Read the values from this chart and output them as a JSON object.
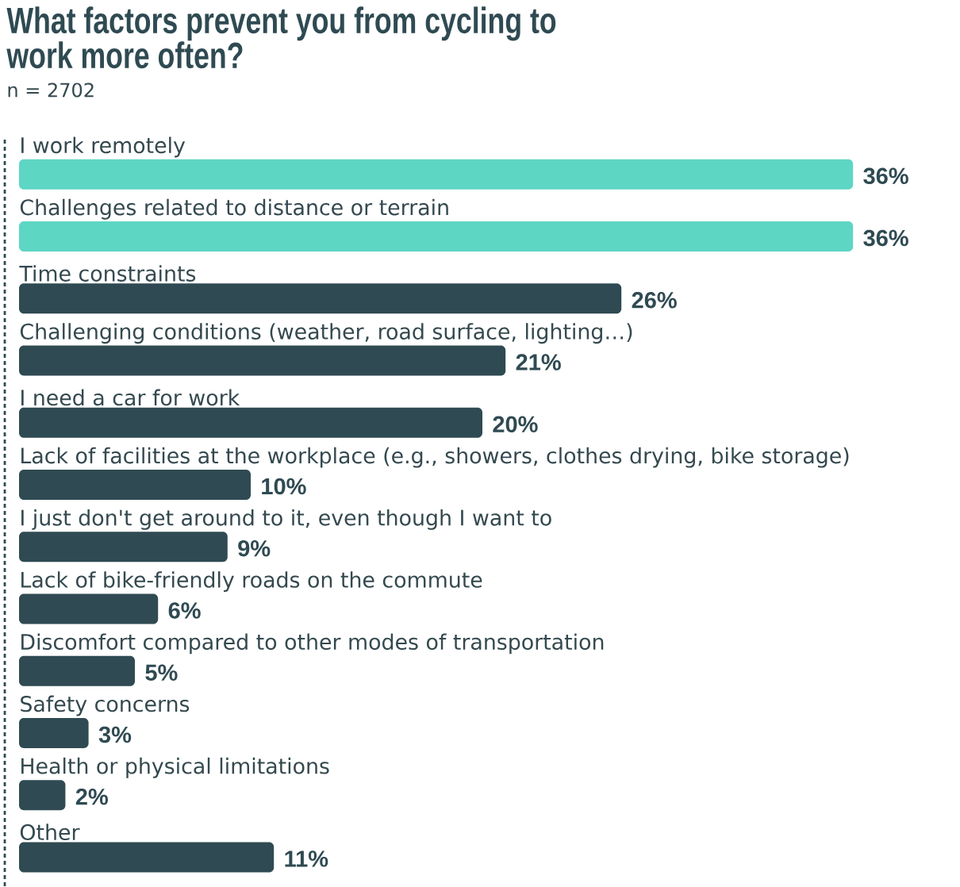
{
  "chart_data": {
    "type": "bar",
    "orientation": "horizontal",
    "title": "What factors prevent you from cycling to work more often?",
    "subtitle": "n = 2702",
    "categories": [
      "I work remotely",
      "Challenges related to distance or terrain",
      "Time constraints",
      "Challenging conditions (weather, road surface, lighting…)",
      "I need a car for work",
      "Lack of facilities at the workplace (e.g., showers, clothes drying, bike storage)",
      "I just don't get around to it, even though I want to",
      "Lack of bike-friendly roads on the commute",
      "Discomfort compared to other modes of transportation",
      "Safety concerns",
      "Health or physical limitations",
      "Other"
    ],
    "values": [
      36,
      36,
      26,
      21,
      20,
      10,
      9,
      6,
      5,
      3,
      2,
      11
    ],
    "value_labels": [
      "36%",
      "36%",
      "26%",
      "21%",
      "20%",
      "10%",
      "9%",
      "6%",
      "5%",
      "3%",
      "2%",
      "11%"
    ],
    "colors": [
      "#5dd6c4",
      "#5dd6c4",
      "#2f4a52",
      "#2f4a52",
      "#2f4a52",
      "#2f4a52",
      "#2f4a52",
      "#2f4a52",
      "#2f4a52",
      "#2f4a52",
      "#2f4a52",
      "#2f4a52"
    ]
  }
}
